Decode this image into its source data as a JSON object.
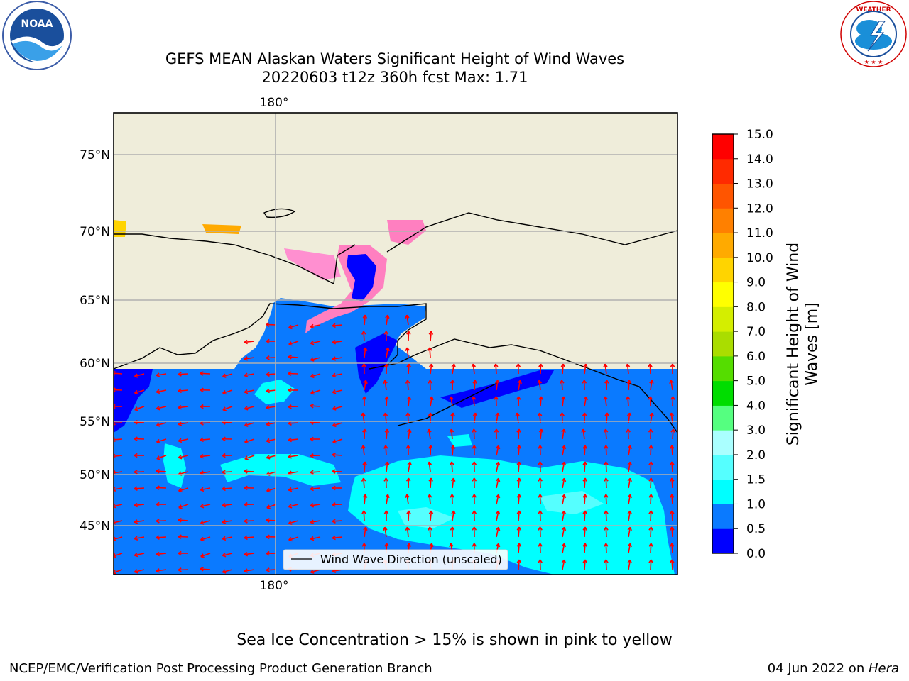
{
  "header": {
    "title_line1": "GEFS MEAN Alaskan Waters Significant Height of Wind Waves",
    "title_line2": "20220603 t12z 360h fcst   Max: 1.71"
  },
  "logos": {
    "left": {
      "name": "NOAA",
      "ring_text": "NATIONAL OCEANIC AND ATMOSPHERIC ADMINISTRATION · U.S. DEPARTMENT OF COMMERCE"
    },
    "right": {
      "name": "NATIONAL WEATHER SERVICE"
    }
  },
  "map": {
    "lon_label_top": "180°",
    "lon_label_bottom": "180°",
    "lat_labels": [
      "75°N",
      "70°N",
      "65°N",
      "60°N",
      "55°N",
      "50°N",
      "45°N"
    ],
    "legend_text": "Wind Wave Direction (unscaled)",
    "arrow_color": "#ff0000",
    "land_color": "#efedda",
    "grid_color": "#b0b0b0"
  },
  "colorbar": {
    "title": "Significant Height of Wind Waves [m]",
    "title_line1": "Significant Height of Wind",
    "title_line2": "Waves [m]",
    "ticks": [
      "0.0",
      "0.5",
      "1.0",
      "1.5",
      "2.0",
      "3.0",
      "4.0",
      "5.0",
      "6.0",
      "7.0",
      "8.0",
      "9.0",
      "10.0",
      "11.0",
      "12.0",
      "13.0",
      "14.0",
      "15.0"
    ],
    "colors": [
      "#0000ff",
      "#0a7aff",
      "#00ffff",
      "#55ffff",
      "#aaffff",
      "#55ff80",
      "#00dd00",
      "#55dd00",
      "#aadd00",
      "#d4ee00",
      "#ffff00",
      "#ffd400",
      "#ffaa00",
      "#ff8000",
      "#ff5500",
      "#ff2a00",
      "#ff0000"
    ]
  },
  "footer": {
    "caption": "Sea Ice Concentration > 15% is shown in pink to yellow",
    "left": "NCEP/EMC/Verification Post Processing Product Generation Branch",
    "right_date": "04 Jun 2022 on ",
    "right_host": "Hera"
  }
}
